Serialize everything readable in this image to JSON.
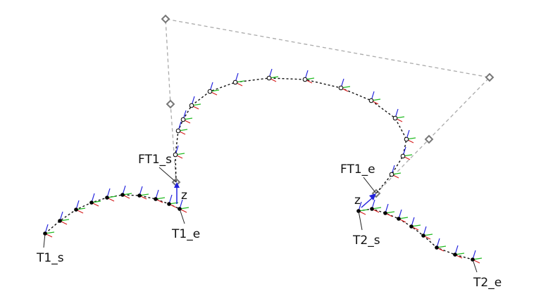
{
  "labels": {
    "t1_start": "T1_s",
    "t1_end": "T1_e",
    "ft1_start": "FT1_s",
    "ft1_end": "FT1_e",
    "t2_start": "T2_s",
    "t2_end": "T2_e",
    "z_left": "z",
    "z_right": "z"
  },
  "colors": {
    "curve": "#111111",
    "control_polygon": "#aaaaaa",
    "frame_x": "#d62020",
    "frame_y": "#22bb22",
    "frame_z": "#2222dd"
  }
}
